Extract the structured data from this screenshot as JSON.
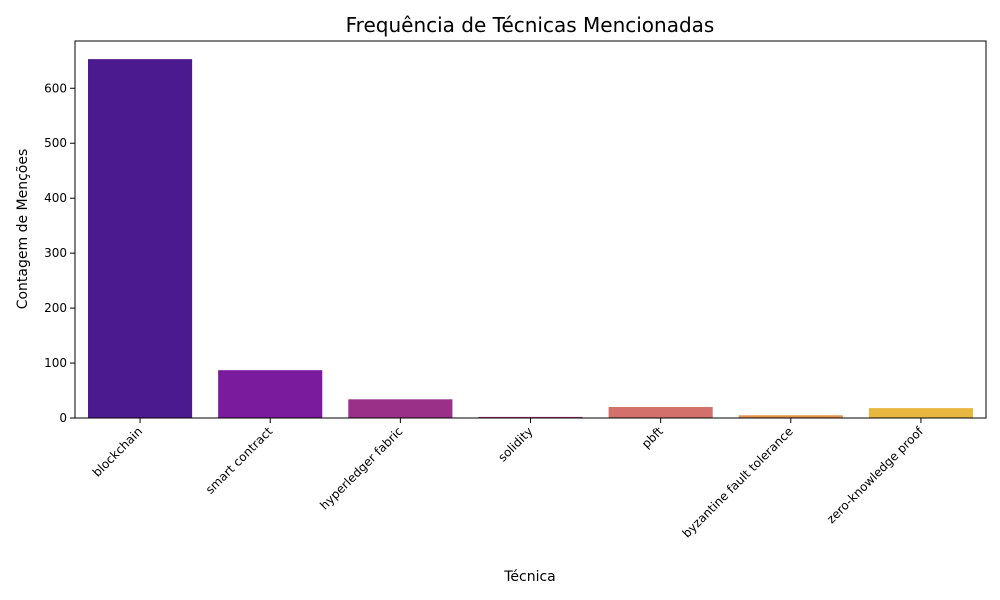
{
  "chart_data": {
    "type": "bar",
    "title": "Frequência de Técnicas Mencionadas",
    "xlabel": "Técnica",
    "ylabel": "Contagem de Menções",
    "categories": [
      "blockchain",
      "smart contract",
      "hyperledger fabric",
      "solidity",
      "pbft",
      "byzantine fault tolerance",
      "zero-knowledge proof"
    ],
    "values": [
      653,
      87,
      34,
      2,
      20,
      5,
      18
    ],
    "colors": [
      "#4c1a8f",
      "#7a1a9c",
      "#9b3088",
      "#b03c72",
      "#d4706c",
      "#e79450",
      "#e8b73f"
    ],
    "yticks": [
      0,
      100,
      200,
      300,
      400,
      500,
      600
    ],
    "ylim": [
      0,
      686
    ],
    "grid": false,
    "legend": "none"
  }
}
